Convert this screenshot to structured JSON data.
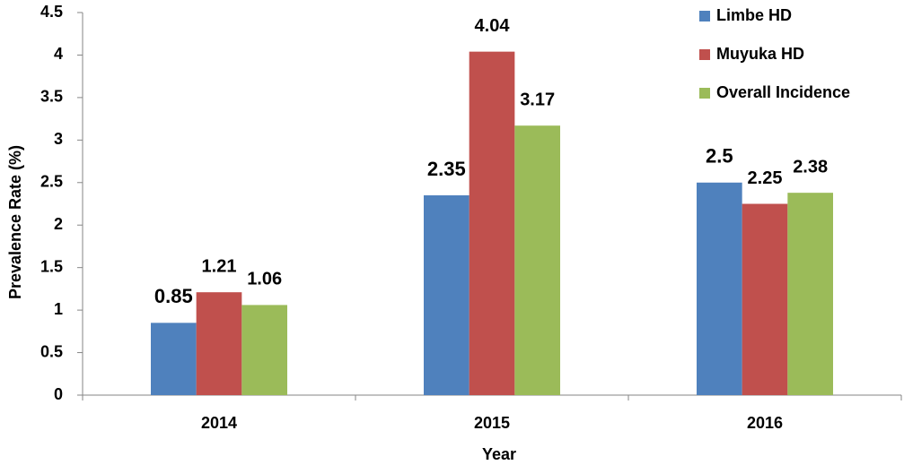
{
  "chart_data": {
    "type": "bar",
    "x_label": "Year",
    "y_label": "Prevalence Rate (%)",
    "categories": [
      "2014",
      "2015",
      "2016"
    ],
    "series": [
      {
        "name": "Limbe HD",
        "color": "#4f81bd",
        "values": [
          0.85,
          2.35,
          2.5
        ]
      },
      {
        "name": "Muyuka HD",
        "color": "#c0504d",
        "values": [
          1.21,
          4.04,
          2.25
        ]
      },
      {
        "name": "Overall Incidence",
        "color": "#9bbb59",
        "values": [
          1.06,
          3.17,
          2.38
        ]
      }
    ],
    "ylim": [
      0,
      4.5
    ],
    "yticks": [
      0,
      0.5,
      1,
      1.5,
      2,
      2.5,
      3,
      3.5,
      4,
      4.5
    ],
    "grid": false,
    "legend": "top-right"
  }
}
